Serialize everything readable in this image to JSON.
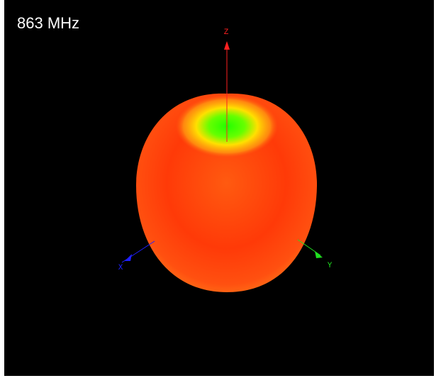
{
  "frequency_label": "863 MHz",
  "axes": {
    "z": "Z",
    "x": "X",
    "y": "Y"
  }
}
